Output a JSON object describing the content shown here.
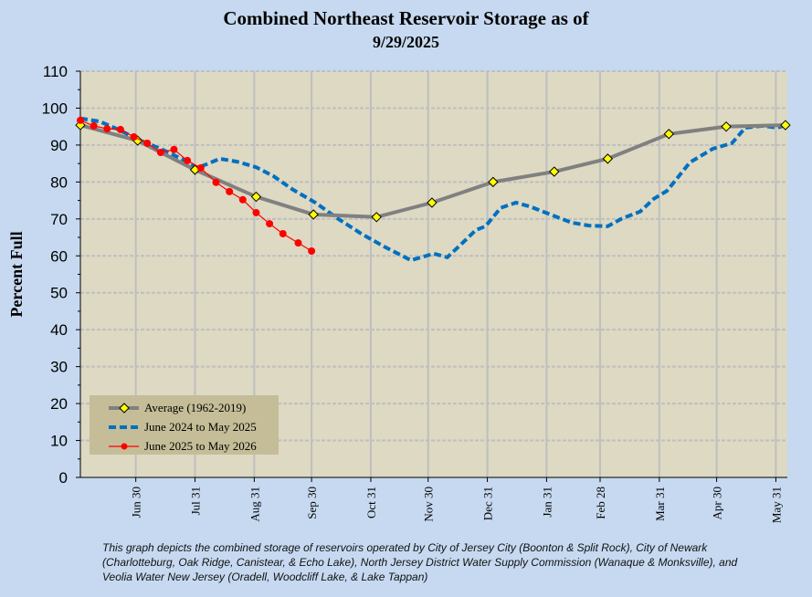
{
  "chart_data": {
    "type": "line",
    "title": "Combined Northeast Reservoir Storage as of",
    "subtitle": "9/29/2025",
    "xlabel": "",
    "ylabel": "Percent Full",
    "ylim": [
      0,
      110
    ],
    "xlim_days_since_jun1": [
      0,
      370
    ],
    "yticks": [
      0,
      10,
      20,
      30,
      40,
      50,
      60,
      70,
      80,
      90,
      100,
      110
    ],
    "xticks": [
      {
        "label": "Jun 30",
        "day": 29
      },
      {
        "label": "Jul 31",
        "day": 60
      },
      {
        "label": "Aug 31",
        "day": 91
      },
      {
        "label": "Sep 30",
        "day": 121
      },
      {
        "label": "Oct 31",
        "day": 152
      },
      {
        "label": "Nov 30",
        "day": 182
      },
      {
        "label": "Dec 31",
        "day": 213
      },
      {
        "label": "Jan 31",
        "day": 244
      },
      {
        "label": "Feb 28",
        "day": 272
      },
      {
        "label": "Mar 31",
        "day": 303
      },
      {
        "label": "Apr 30",
        "day": 333
      },
      {
        "label": "May 31",
        "day": 364
      }
    ],
    "grid": true,
    "legend_position": "bottom-left",
    "series": [
      {
        "name": "Average (1962-2019)",
        "color": "#808080",
        "marker": "diamond",
        "marker_color": "#ffff00",
        "x": [
          0,
          30,
          60,
          92,
          122,
          155,
          184,
          216,
          248,
          276,
          308,
          338,
          369
        ],
        "y": [
          95.4,
          91.2,
          83.3,
          76.0,
          71.2,
          70.5,
          74.4,
          80.0,
          82.8,
          86.3,
          93.0,
          95.0,
          95.4
        ]
      },
      {
        "name": "June 2024 to May 2025",
        "color": "#0070c0",
        "marker": "none",
        "dashed": true,
        "x": [
          0,
          10,
          20,
          30,
          42,
          54,
          61,
          66,
          73,
          82,
          92,
          101,
          111,
          123,
          135,
          147,
          159,
          173,
          185,
          192,
          199,
          207,
          212,
          220,
          228,
          235,
          245,
          257,
          266,
          276,
          283,
          293,
          300,
          307,
          319,
          331,
          341,
          348,
          357,
          365,
          369
        ],
        "y": [
          97.2,
          96.4,
          94.2,
          91.5,
          89,
          86,
          83.8,
          84.8,
          86.3,
          85.5,
          84,
          81.6,
          78,
          74.4,
          70,
          66,
          62.5,
          58.8,
          60.6,
          59.6,
          63,
          67,
          68,
          73,
          74.4,
          73.4,
          71.4,
          69,
          68.2,
          68,
          70,
          72,
          75.4,
          77.6,
          85.3,
          89,
          90.5,
          94.7,
          95.2,
          94.7,
          95.4
        ]
      },
      {
        "name": "June 2025 to May 2026",
        "color": "#ff0000",
        "marker": "circle",
        "x": [
          0,
          7,
          14,
          21,
          28,
          35,
          42,
          49,
          56,
          63,
          71,
          78,
          85,
          92,
          99,
          106,
          114,
          121
        ],
        "y": [
          96.7,
          95.2,
          94.4,
          94.2,
          92.2,
          90.5,
          88,
          88.8,
          85.8,
          83.8,
          79.9,
          77.4,
          75.2,
          71.7,
          68.7,
          66,
          63.5,
          61.3
        ]
      }
    ]
  },
  "footnote": "This graph depicts the combined storage of reservoirs operated by City of Jersey City (Boonton & Split Rock), City of Newark (Charlotteburg, Oak Ridge, Canistear, & Echo Lake), North Jersey District Water Supply Commission (Wanaque & Monksville), and Veolia Water New Jersey (Oradell, Woodcliff Lake, & Lake Tappan)"
}
